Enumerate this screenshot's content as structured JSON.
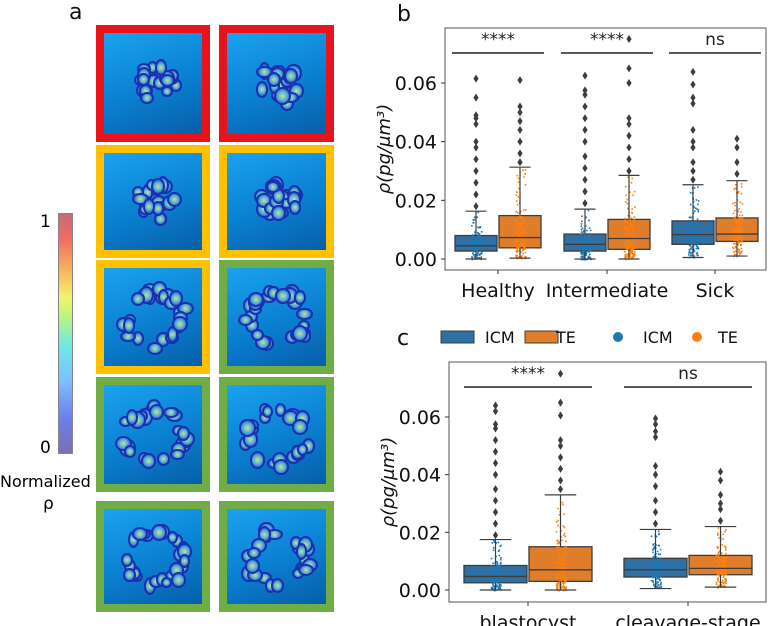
{
  "panel_labels": {
    "a": "a",
    "b": "b",
    "c": "c"
  },
  "panel_a": {
    "tile_border_colors": [
      [
        "#e8131b",
        "#e8131b"
      ],
      [
        "#ffc000",
        "#ffc000"
      ],
      [
        "#ffc000",
        "#70ad47"
      ],
      [
        "#70ad47",
        "#70ad47"
      ],
      [
        "#70ad47",
        "#70ad47"
      ]
    ],
    "colorbar": {
      "max_label": "1",
      "min_label": "0",
      "title_line1": "Normalized",
      "title_line2": "ρ"
    }
  },
  "legend": {
    "items": [
      {
        "label": "ICM",
        "kind": "box",
        "color": "#2f6fa3"
      },
      {
        "label": "TE",
        "kind": "box",
        "color": "#e07d2a"
      },
      {
        "label": "ICM",
        "kind": "dot",
        "color": "#1f77b4"
      },
      {
        "label": "TE",
        "kind": "dot",
        "color": "#ff7f0e"
      }
    ]
  },
  "chart_data": [
    {
      "type": "box",
      "panel": "b",
      "ylabel": "ρ(pg/μm³)",
      "ylim": [
        -0.002,
        0.078
      ],
      "yticks": [
        "0.00",
        "0.02",
        "0.04",
        "0.06"
      ],
      "ytick_values": [
        0,
        0.02,
        0.04,
        0.06
      ],
      "categories": [
        "Healthy",
        "Intermediate",
        "Sick"
      ],
      "significance": [
        "****",
        "****",
        "ns"
      ],
      "series": [
        {
          "name": "ICM",
          "color": "#2f6fa3",
          "dot_color": "#1f77b4",
          "boxes": [
            {
              "whislo": 0.0,
              "q1": 0.0027,
              "med": 0.0045,
              "q3": 0.008,
              "whishi": 0.0163,
              "outliers": [
                0.018,
                0.022,
                0.026,
                0.03,
                0.034,
                0.038,
                0.04,
                0.046,
                0.048,
                0.049,
                0.055,
                0.0615
              ]
            },
            {
              "whislo": 0.0,
              "q1": 0.0027,
              "med": 0.005,
              "q3": 0.0085,
              "whishi": 0.017,
              "outliers": [
                0.019,
                0.023,
                0.027,
                0.031,
                0.035,
                0.04,
                0.044,
                0.048,
                0.052,
                0.056,
                0.0575,
                0.0625
              ]
            },
            {
              "whislo": 0.0005,
              "q1": 0.005,
              "med": 0.0083,
              "q3": 0.013,
              "whishi": 0.0253,
              "outliers": [
                0.027,
                0.03,
                0.033,
                0.038,
                0.04,
                0.044,
                0.053,
                0.055,
                0.0595,
                0.0638
              ]
            }
          ]
        },
        {
          "name": "TE",
          "color": "#e07d2a",
          "dot_color": "#ff7f0e",
          "boxes": [
            {
              "whislo": 0.0003,
              "q1": 0.0038,
              "med": 0.0073,
              "q3": 0.0148,
              "whishi": 0.0313,
              "outliers": [
                0.033,
                0.036,
                0.04,
                0.044,
                0.047,
                0.05,
                0.052,
                0.061
              ]
            },
            {
              "whislo": 0.0,
              "q1": 0.0033,
              "med": 0.007,
              "q3": 0.0135,
              "whishi": 0.0285,
              "outliers": [
                0.03,
                0.034,
                0.038,
                0.042,
                0.046,
                0.048,
                0.06,
                0.065,
                0.075
              ]
            },
            {
              "whislo": 0.001,
              "q1": 0.006,
              "med": 0.0085,
              "q3": 0.014,
              "whishi": 0.0267,
              "outliers": [
                0.029,
                0.033,
                0.038,
                0.041
              ]
            }
          ]
        }
      ]
    },
    {
      "type": "box",
      "panel": "c",
      "ylabel": "ρ(pg/μm³)",
      "ylim": [
        -0.002,
        0.079
      ],
      "yticks": [
        "0.00",
        "0.02",
        "0.04",
        "0.06"
      ],
      "ytick_values": [
        0,
        0.02,
        0.04,
        0.06
      ],
      "categories": [
        "blastocyst",
        "cleavage-stage"
      ],
      "significance": [
        "****",
        "ns"
      ],
      "series": [
        {
          "name": "ICM",
          "color": "#2f6fa3",
          "dot_color": "#1f77b4",
          "boxes": [
            {
              "whislo": 0.0,
              "q1": 0.0025,
              "med": 0.0047,
              "q3": 0.0085,
              "whishi": 0.0175,
              "outliers": [
                0.019,
                0.023,
                0.027,
                0.031,
                0.035,
                0.04,
                0.044,
                0.048,
                0.052,
                0.056,
                0.0575,
                0.062,
                0.064
              ]
            },
            {
              "whislo": 0.0005,
              "q1": 0.0045,
              "med": 0.007,
              "q3": 0.011,
              "whishi": 0.021,
              "outliers": [
                0.023,
                0.027,
                0.031,
                0.036,
                0.04,
                0.043,
                0.053,
                0.055,
                0.0575,
                0.0595
              ]
            }
          ]
        },
        {
          "name": "TE",
          "color": "#e07d2a",
          "dot_color": "#ff7f0e",
          "boxes": [
            {
              "whislo": 0.0,
              "q1": 0.003,
              "med": 0.007,
              "q3": 0.015,
              "whishi": 0.033,
              "outliers": [
                0.035,
                0.038,
                0.042,
                0.046,
                0.05,
                0.052,
                0.0605,
                0.065,
                0.075
              ]
            },
            {
              "whislo": 0.001,
              "q1": 0.0053,
              "med": 0.0075,
              "q3": 0.012,
              "whishi": 0.022,
              "outliers": [
                0.024,
                0.028,
                0.03,
                0.033,
                0.038,
                0.041
              ]
            }
          ]
        }
      ]
    }
  ]
}
